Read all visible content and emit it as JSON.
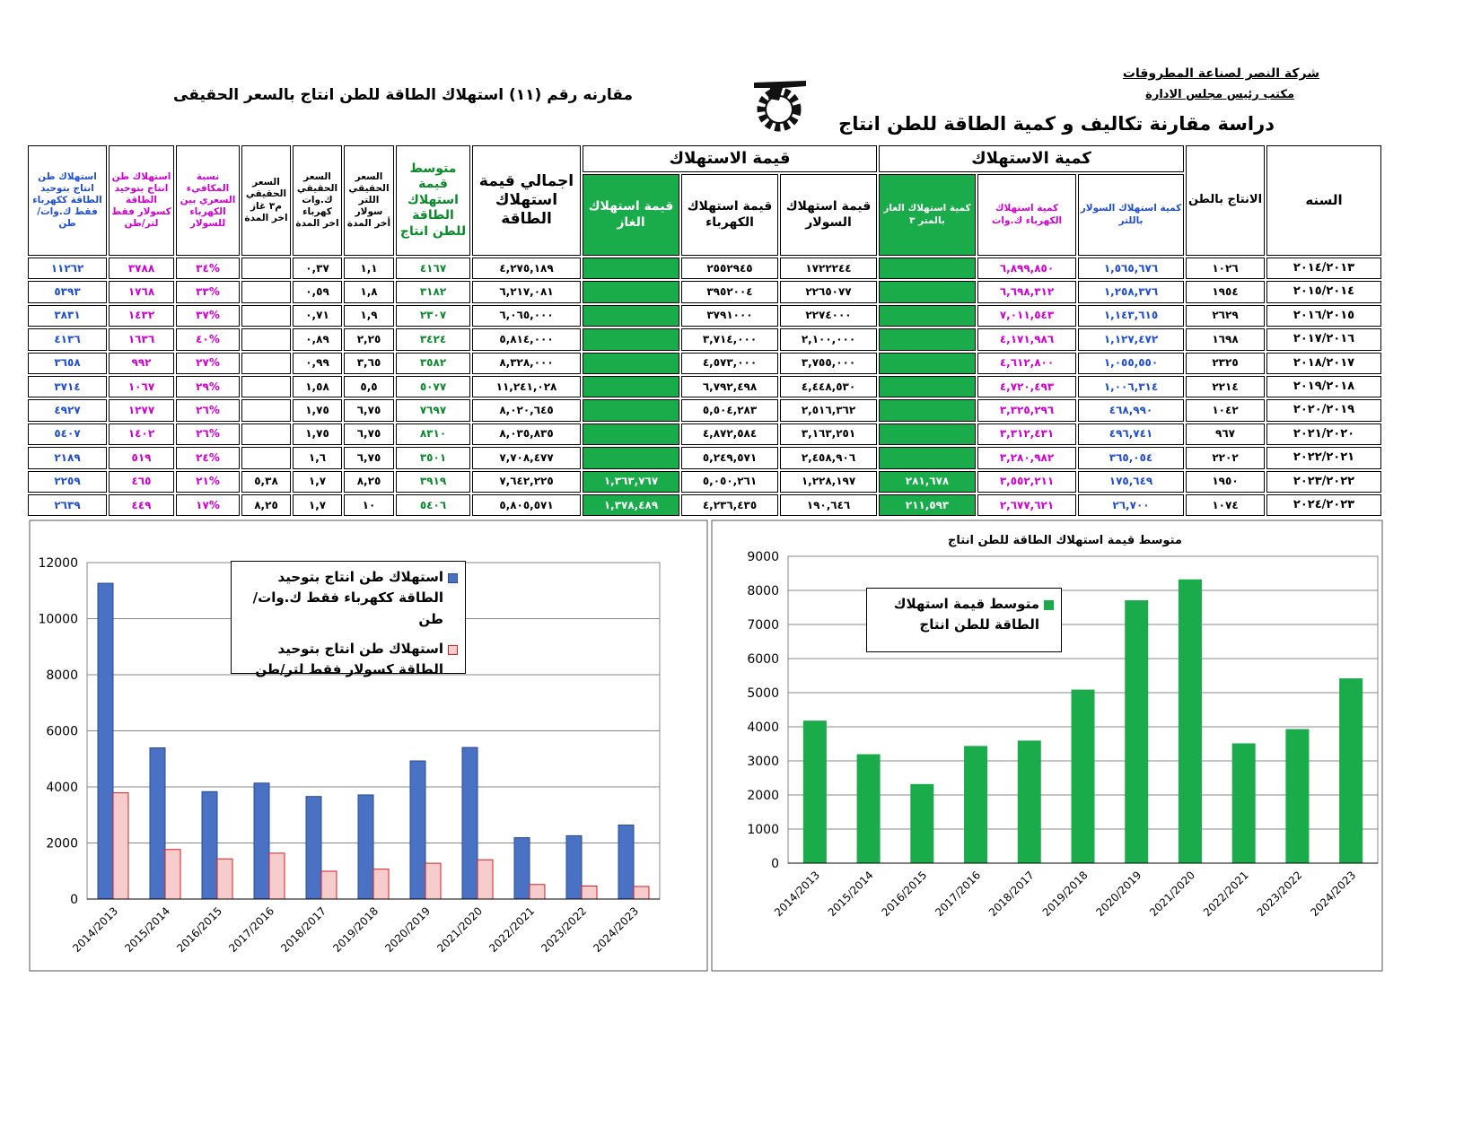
{
  "header": {
    "company": "شركة النصر لصناعة المطروقات",
    "office": "مكتب رئيس مجلس الادارة",
    "study": "دراسة مقارنة تكاليف و كمية الطاقة للطن انتاج",
    "comparison": "مقارنه رقم  (١١) استهلاك الطاقة للطن انتاج بالسعر الحقيقى"
  },
  "table": {
    "groups": [
      "كمية الاستهلاك",
      "قيمة الاستهلاك"
    ],
    "columns": [
      "السنه",
      "الانتاج بالطن",
      "كمية استهلاك السولار باللتر",
      "كمية استهلاك الكهرباء ك.وات",
      "كمية استهلاك الغاز بالمتر ٣",
      "قيمة استهلاك السولار",
      "قيمة استهلاك الكهرباء",
      "قيمة استهلاك الغاز",
      "اجمالي قيمة استهلاك الطاقة",
      "متوسط قيمة استهلاك الطاقة للطن انتاج",
      "السعر الحقيقي اللتر سولار أخر المدة",
      "السعر الحقيقي ك.وات كهرباء اخر المدة",
      "السعر الحقيقي م٣ غاز اخر المدة",
      "نسبة المكافيء السعري بين الكهرباء للسولار",
      "استهلاك طن انتاج بتوحيد الطاقة كسولار فقط لتر/طن",
      "استهلاك طن انتاج بتوحيد الطاقة ككهرباء فقط ك.وات/طن"
    ],
    "rows": [
      [
        "٢٠١٤/٢٠١٣",
        "١٠٢٦",
        "١,٥٦٥,٦٧٦",
        "٦,٨٩٩,٨٥٠",
        null,
        "١٧٢٢٢٤٤",
        "٢٥٥٢٩٤٥",
        null,
        "٤,٢٧٥,١٨٩",
        "٤١٦٧",
        "١,١",
        "٠,٣٧",
        null,
        "%٣٤",
        "٣٧٨٨",
        "١١٢٦٢"
      ],
      [
        "٢٠١٥/٢٠١٤",
        "١٩٥٤",
        "١,٢٥٨,٣٧٦",
        "٦,٦٩٨,٣١٢",
        null,
        "٢٢٦٥٠٧٧",
        "٣٩٥٢٠٠٤",
        null,
        "٦,٢١٧,٠٨١",
        "٣١٨٢",
        "١,٨",
        "٠,٥٩",
        null,
        "%٣٣",
        "١٧٦٨",
        "٥٣٩٣"
      ],
      [
        "٢٠١٦/٢٠١٥",
        "٢٦٢٩",
        "١,١٤٣,٦١٥",
        "٧,٠١١,٥٤٣",
        null,
        "٢٢٧٤٠٠٠",
        "٣٧٩١٠٠٠",
        null,
        "٦,٠٦٥,٠٠٠",
        "٢٣٠٧",
        "١,٩",
        "٠,٧١",
        null,
        "%٣٧",
        "١٤٣٢",
        "٣٨٣١"
      ],
      [
        "٢٠١٧/٢٠١٦",
        "١٦٩٨",
        "١,١٢٧,٤٧٢",
        "٤,١٧١,٩٨٦",
        null,
        "٢,١٠٠,٠٠٠",
        "٣,٧١٤,٠٠٠",
        null,
        "٥,٨١٤,٠٠٠",
        "٣٤٢٤",
        "٢,٢٥",
        "٠,٨٩",
        null,
        "%٤٠",
        "١٦٣٦",
        "٤١٣٦"
      ],
      [
        "٢٠١٨/٢٠١٧",
        "٢٣٢٥",
        "١,٠٥٥,٥٥٠",
        "٤,٦١٢,٨٠٠",
        null,
        "٣,٧٥٥,٠٠٠",
        "٤,٥٧٣,٠٠٠",
        null,
        "٨,٣٢٨,٠٠٠",
        "٣٥٨٢",
        "٣,٦٥",
        "٠,٩٩",
        null,
        "%٢٧",
        "٩٩٢",
        "٣٦٥٨"
      ],
      [
        "٢٠١٩/٢٠١٨",
        "٢٢١٤",
        "١,٠٠٦,٣١٤",
        "٤,٧٢٠,٤٩٣",
        null,
        "٤,٤٤٨,٥٣٠",
        "٦,٧٩٢,٤٩٨",
        null,
        "١١,٢٤١,٠٢٨",
        "٥٠٧٧",
        "٥,٥",
        "١,٥٨",
        null,
        "%٢٩",
        "١٠٦٧",
        "٣٧١٤"
      ],
      [
        "٢٠٢٠/٢٠١٩",
        "١٠٤٢",
        "٤٦٨,٩٩٠",
        "٣,٣٢٥,٢٩٦",
        null,
        "٢,٥١٦,٣٦٢",
        "٥,٥٠٤,٢٨٣",
        null,
        "٨,٠٢٠,٦٤٥",
        "٧٦٩٧",
        "٦,٧٥",
        "١,٧٥",
        null,
        "%٢٦",
        "١٢٧٧",
        "٤٩٢٧"
      ],
      [
        "٢٠٢١/٢٠٢٠",
        "٩٦٧",
        "٤٩٦,٧٤١",
        "٣,٣١٢,٤٣١",
        null,
        "٣,١٦٣,٢٥١",
        "٤,٨٧٢,٥٨٤",
        null,
        "٨,٠٣٥,٨٣٥",
        "٨٣١٠",
        "٦,٧٥",
        "١,٧٥",
        null,
        "%٢٦",
        "١٤٠٢",
        "٥٤٠٧"
      ],
      [
        "٢٠٢٢/٢٠٢١",
        "٢٢٠٢",
        "٣٦٥,٠٥٤",
        "٣,٢٨٠,٩٨٢",
        null,
        "٢,٤٥٨,٩٠٦",
        "٥,٢٤٩,٥٧١",
        null,
        "٧,٧٠٨,٤٧٧",
        "٣٥٠١",
        "٦,٧٥",
        "١,٦",
        null,
        "%٢٤",
        "٥١٩",
        "٢١٨٩"
      ],
      [
        "٢٠٢٣/٢٠٢٢",
        "١٩٥٠",
        "١٧٥,٦٤٩",
        "٣,٥٥٢,٢١١",
        "٢٨١,٦٧٨",
        "١,٢٢٨,١٩٧",
        "٥,٠٥٠,٢٦١",
        "١,٣٦٣,٧٦٧",
        "٧,٦٤٢,٢٢٥",
        "٣٩١٩",
        "٨,٢٥",
        "١,٧",
        "٥,٣٨",
        "%٢١",
        "٤٦٥",
        "٢٢٥٩"
      ],
      [
        "٢٠٢٤/٢٠٢٣",
        "١٠٧٤",
        "٢٦,٧٠٠",
        "٢,٦٧٧,٦٢١",
        "٢١١,٥٩٣",
        "١٩٠,٦٤٦",
        "٤,٢٣٦,٤٣٥",
        "١,٣٧٨,٤٨٩",
        "٥,٨٠٥,٥٧١",
        "٥٤٠٦",
        "١٠",
        "١,٧",
        "٨,٢٥",
        "%١٧",
        "٤٤٩",
        "٢٦٣٩"
      ]
    ]
  },
  "chart_data": [
    {
      "type": "bar",
      "categories": [
        "2014/2013",
        "2015/2014",
        "2016/2015",
        "2017/2016",
        "2018/2017",
        "2019/2018",
        "2020/2019",
        "2021/2020",
        "2022/2021",
        "2023/2022",
        "2024/2023"
      ],
      "series": [
        {
          "name": "استهلاك طن انتاج بتوحيد الطاقة ككهرباء فقط ك.وات/طن",
          "color": "#4a72c4",
          "edgecolor": "#2c4a8c",
          "values": [
            11262,
            5393,
            3831,
            4136,
            3658,
            3714,
            4927,
            5407,
            2189,
            2259,
            2639
          ]
        },
        {
          "name": "استهلاك طن انتاج بتوحيد الطاقة كسولار فقط لتر/طن",
          "color": "#f6cccc",
          "edgecolor": "#d02020",
          "values": [
            3788,
            1768,
            1432,
            1636,
            992,
            1067,
            1277,
            1402,
            519,
            465,
            449
          ]
        }
      ],
      "ylim": [
        0,
        12000
      ],
      "yticks": [
        0,
        2000,
        4000,
        6000,
        8000,
        10000,
        12000
      ],
      "grid": true,
      "legend": "top"
    },
    {
      "type": "bar",
      "title": "متوسط قيمة استهلاك الطاقة للطن انتاج",
      "categories": [
        "2014/2013",
        "2015/2014",
        "2016/2015",
        "2017/2016",
        "2018/2017",
        "2019/2018",
        "2020/2019",
        "2021/2020",
        "2022/2021",
        "2023/2022",
        "2024/2023"
      ],
      "series": [
        {
          "name": "متوسط قيمة استهلاك الطاقة للطن انتاج",
          "color": "#1aab4a",
          "edgecolor": "#1aab4a",
          "values": [
            4167,
            3182,
            2307,
            3424,
            3582,
            5077,
            7697,
            8310,
            3501,
            3919,
            5406
          ]
        }
      ],
      "ylim": [
        0,
        9000
      ],
      "yticks": [
        0,
        1000,
        2000,
        3000,
        4000,
        5000,
        6000,
        7000,
        8000,
        9000
      ],
      "grid": true,
      "legend": "top-left"
    }
  ]
}
